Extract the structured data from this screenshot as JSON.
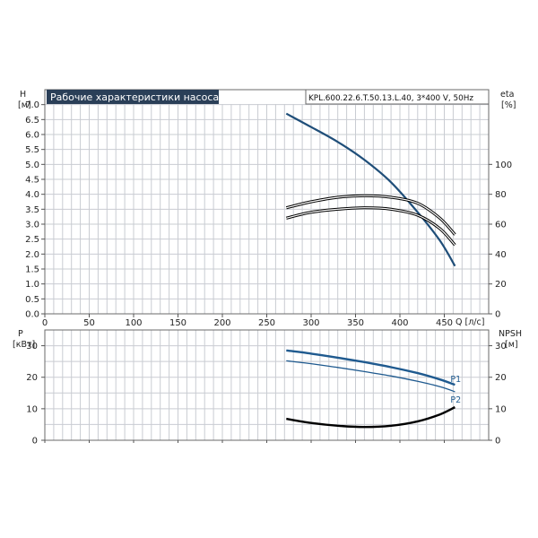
{
  "header": {
    "title": "Рабочие характеристики насоса",
    "model": "KPL.600.22.6.T.50.13.L.40, 3*400 V, 50Hz"
  },
  "colors": {
    "title_bg": "#2a3f58",
    "head_curve": "#1f4e79",
    "power_curve": "#1f5a8f",
    "efficiency_curve": "#000000",
    "npsh_curve": "#000000",
    "grid": "#c9ccd2"
  },
  "chart_data": [
    {
      "type": "line",
      "title": "Рабочие характеристики насоса",
      "x_axis": {
        "label": "Q [л/с]",
        "range": [
          0,
          500
        ],
        "ticks": [
          0,
          50,
          100,
          150,
          200,
          250,
          300,
          350,
          400,
          450
        ]
      },
      "y_axis_left": {
        "label_line1": "H",
        "label_line2": "[м]",
        "range": [
          0,
          7.5
        ],
        "ticks": [
          "0.0",
          "0.5",
          "1.0",
          "1.5",
          "2.0",
          "2.5",
          "3.0",
          "3.5",
          "4.0",
          "4.5",
          "5.0",
          "5.5",
          "6.0",
          "6.5",
          "7.0"
        ]
      },
      "y_axis_right": {
        "label_line1": "eta",
        "label_line2": "[%]",
        "range": [
          0,
          150
        ],
        "ticks": [
          "0",
          "20",
          "40",
          "60",
          "80",
          "100"
        ]
      },
      "grid": true,
      "series": [
        {
          "axis": "left",
          "x": [
            272,
            300,
            330,
            360,
            390,
            420,
            445,
            462
          ],
          "y": [
            6.7,
            6.25,
            5.75,
            5.15,
            4.4,
            3.4,
            2.45,
            1.6
          ]
        },
        {
          "axis": "right",
          "x": [
            272,
            300,
            330,
            360,
            390,
            420,
            445,
            462
          ],
          "y": [
            71,
            75,
            78,
            79,
            78,
            74,
            64,
            53
          ]
        },
        {
          "axis": "right",
          "x": [
            272,
            300,
            330,
            360,
            390,
            420,
            445,
            462
          ],
          "y": [
            64,
            68,
            70,
            71,
            70,
            66,
            57,
            46
          ]
        }
      ]
    },
    {
      "type": "line",
      "x_axis": {
        "range": [
          0,
          500
        ],
        "ticks": [
          0,
          50,
          100,
          150,
          200,
          250,
          300,
          350,
          400,
          450
        ]
      },
      "y_axis_left": {
        "label_line1": "P",
        "label_line2": "[кВт]",
        "range": [
          0,
          35
        ],
        "ticks": [
          "0",
          "10",
          "20",
          "30"
        ]
      },
      "y_axis_right": {
        "label_line1": "NPSH",
        "label_line2": "[м]",
        "range": [
          0,
          35
        ],
        "ticks": [
          "0",
          "10",
          "20",
          "30"
        ]
      },
      "grid": true,
      "series": [
        {
          "name": "P1",
          "axis": "left",
          "x": [
            272,
            300,
            330,
            360,
            390,
            420,
            445,
            462
          ],
          "y": [
            28.5,
            27.5,
            26.2,
            24.8,
            23.2,
            21.3,
            19.3,
            17.6
          ]
        },
        {
          "name": "P2",
          "axis": "left",
          "x": [
            272,
            300,
            330,
            360,
            390,
            420,
            445,
            462
          ],
          "y": [
            25.2,
            24.3,
            23.1,
            21.8,
            20.4,
            18.7,
            17.0,
            15.4
          ]
        },
        {
          "axis": "right",
          "x": [
            272,
            300,
            330,
            360,
            390,
            420,
            445,
            462
          ],
          "y": [
            6.8,
            5.5,
            4.6,
            4.2,
            4.6,
            6.0,
            8.2,
            10.5
          ]
        }
      ]
    }
  ]
}
